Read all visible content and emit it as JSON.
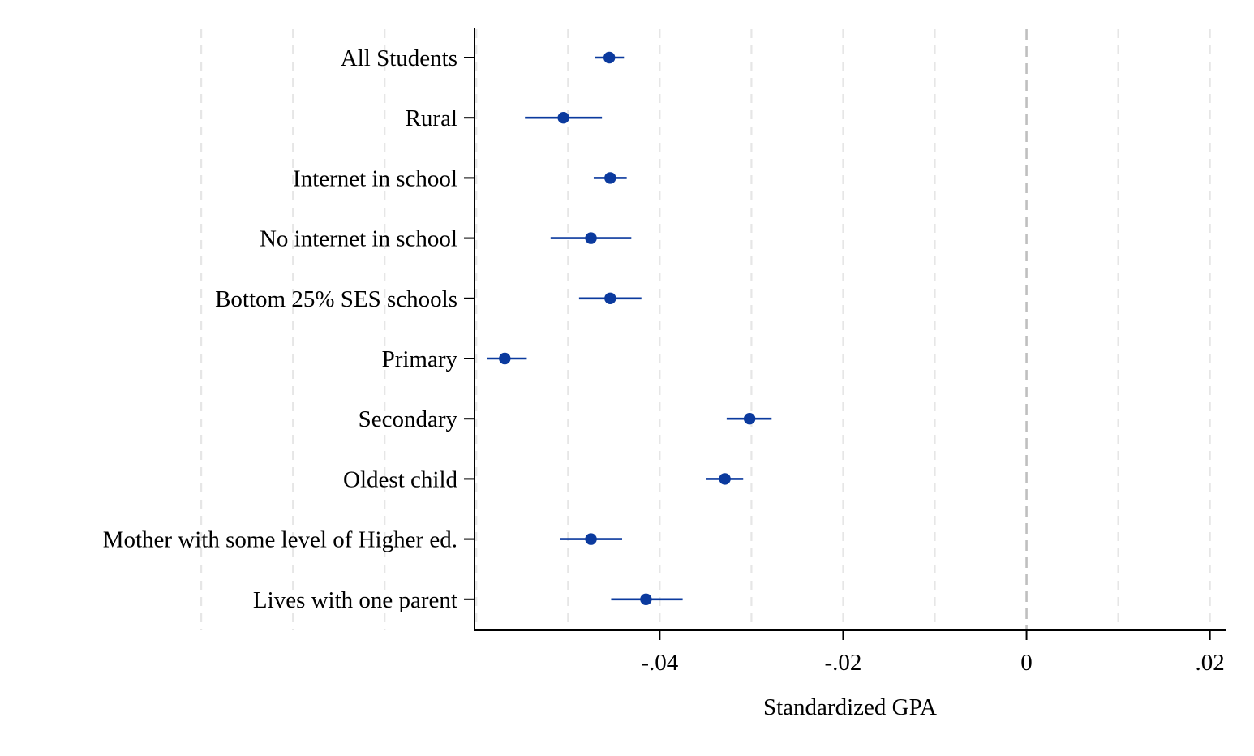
{
  "chart_data": {
    "type": "scatter",
    "subtype": "coefficient-plot-horizontal",
    "xlabel": "Standardized GPA",
    "ylabel": "",
    "title": "",
    "xlim": [
      -0.0602,
      0.0218
    ],
    "x_ticks": [
      {
        "value": -0.04,
        "label": "-.04"
      },
      {
        "value": -0.02,
        "label": "-.02"
      },
      {
        "value": 0,
        "label": "0"
      },
      {
        "value": 0.02,
        "label": ".02"
      }
    ],
    "reference_line": {
      "x": 0
    },
    "grid": true,
    "legend": "none",
    "colors": {
      "marker": "#0b3a9e",
      "grid": "#e6e6e6",
      "reference": "#bfbfbf",
      "axis": "#000000"
    },
    "categories": [
      "All Students",
      "Rural",
      "Internet in school",
      "No internet in school",
      "Bottom 25% SES schools",
      "Primary",
      "Secondary",
      "Oldest child",
      "Mother with some level of Higher ed.",
      "Lives with one parent"
    ],
    "series": [
      {
        "estimates": [
          -0.0455,
          -0.0505,
          -0.0454,
          -0.0475,
          -0.0454,
          -0.0569,
          -0.0302,
          -0.0329,
          -0.0475,
          -0.0415
        ],
        "ci_low": [
          -0.0471,
          -0.0547,
          -0.0472,
          -0.0519,
          -0.0488,
          -0.0588,
          -0.0327,
          -0.0349,
          -0.0509,
          -0.0453
        ],
        "ci_high": [
          -0.0439,
          -0.0463,
          -0.0436,
          -0.0431,
          -0.042,
          -0.0545,
          -0.0278,
          -0.0309,
          -0.0441,
          -0.0375
        ]
      }
    ]
  }
}
